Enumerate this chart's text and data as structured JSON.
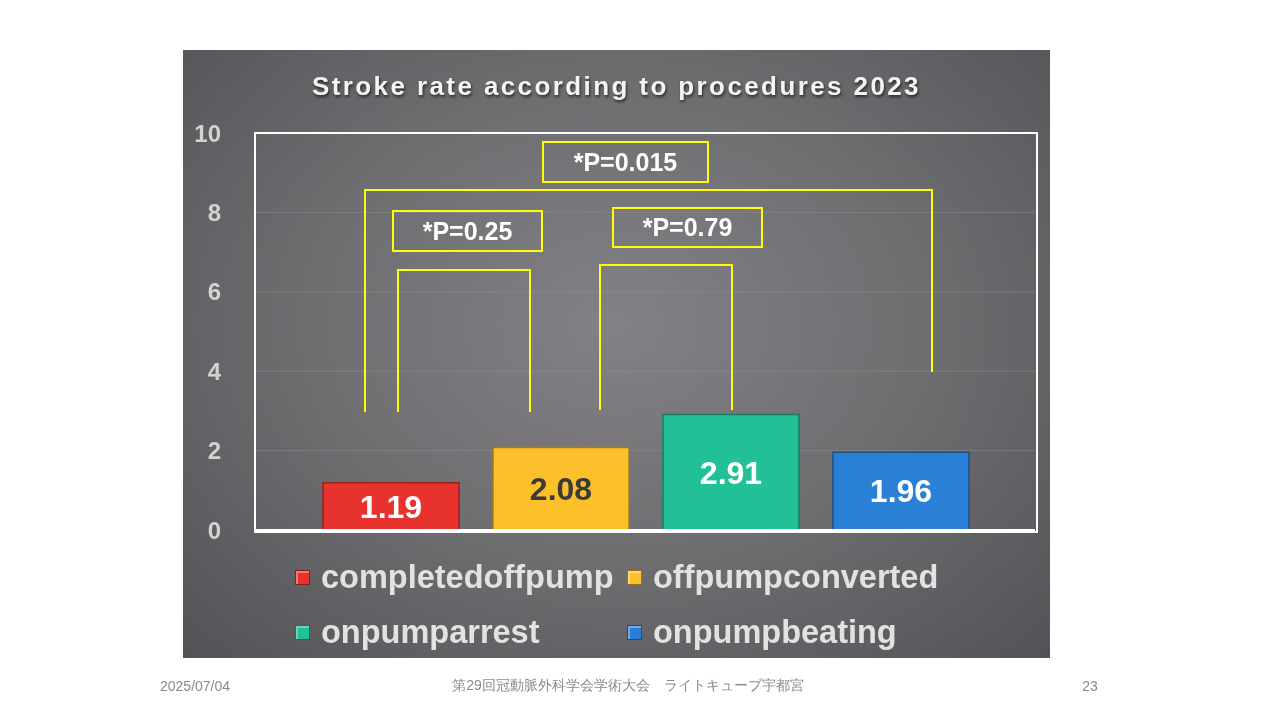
{
  "chart_data": {
    "type": "bar",
    "title": "Stroke rate according to procedures 2023",
    "categories": [
      null
    ],
    "series": [
      {
        "name": "completedoffpump",
        "color": "#e8322d",
        "values": [
          1.19
        ]
      },
      {
        "name": "offpumpconverted",
        "color": "#fcc02a",
        "values": [
          2.08
        ]
      },
      {
        "name": "onpumparrest",
        "color": "#22c096",
        "values": [
          2.91
        ]
      },
      {
        "name": "onpumpbeating",
        "color": "#2a7fd6",
        "values": [
          1.96
        ]
      }
    ],
    "ylim": [
      0,
      10
    ],
    "yticks": [
      0,
      2,
      4,
      6,
      8,
      10
    ],
    "grid": "y",
    "legend": "bottom",
    "data_labels": true,
    "annotations": [
      "*P=0.015",
      "*P=0.25",
      "*P=0.79",
      "2025/07/04",
      "第29回冠動脈外科学会学術大会　ライトキューブ宇都宮",
      "23"
    ]
  }
}
